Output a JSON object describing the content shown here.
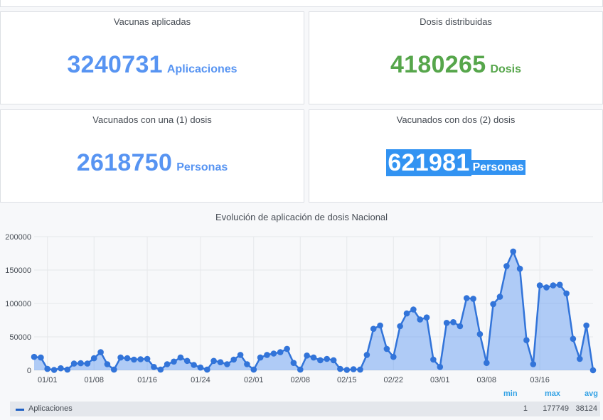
{
  "panels": [
    {
      "title": "Vacunas aplicadas",
      "value": "3240731",
      "unit": "Aplicaciones",
      "color": "#5794f2"
    },
    {
      "title": "Dosis distribuidas",
      "value": "4180265",
      "unit": "Dosis",
      "color": "#56a64b"
    },
    {
      "title": "Vacunados con una (1) dosis",
      "value": "2618750",
      "unit": "Personas",
      "color": "#5794f2"
    },
    {
      "title": "Vacunados con dos (2) dosis",
      "value": "621981",
      "unit": "Personas",
      "color": "#3293f2",
      "highlighted": true
    }
  ],
  "chart": {
    "title": "Evolución de aplicación de dosis Nacional",
    "legend": {
      "headers": {
        "min": "min",
        "max": "max",
        "avg": "avg"
      },
      "series_name": "Aplicaciones",
      "min": "1",
      "max": "177749",
      "avg": "38124",
      "color": "#1f60c4"
    }
  },
  "chart_data": {
    "type": "area",
    "title": "Evolución de aplicación de dosis Nacional",
    "ylim": [
      0,
      200000
    ],
    "y_ticks": [
      "0",
      "50000",
      "100000",
      "150000",
      "200000"
    ],
    "x_ticks": [
      "01/01",
      "01/08",
      "01/16",
      "01/24",
      "02/01",
      "02/08",
      "02/15",
      "02/22",
      "03/01",
      "03/08",
      "03/16"
    ],
    "grid": true,
    "series": [
      {
        "name": "Aplicaciones",
        "color": "#3274d9",
        "values": [
          20000,
          19000,
          2000,
          500,
          3000,
          1000,
          10000,
          10500,
          10000,
          18000,
          27000,
          9000,
          1000,
          19000,
          18000,
          16000,
          16500,
          17000,
          5000,
          1000,
          9000,
          13000,
          19000,
          14000,
          8000,
          4000,
          1000,
          14000,
          12000,
          9000,
          16000,
          23000,
          9000,
          1000,
          19000,
          23000,
          25000,
          27000,
          32000,
          11000,
          1000,
          22000,
          19000,
          15000,
          17000,
          15000,
          2000,
          500,
          1500,
          1000,
          23000,
          62000,
          67000,
          32000,
          20000,
          66000,
          85000,
          91000,
          76000,
          79000,
          16000,
          5000,
          71000,
          72000,
          66000,
          108000,
          107000,
          54000,
          11000,
          99000,
          110000,
          156000,
          177749,
          152000,
          45000,
          9000,
          127000,
          124000,
          127000,
          128000,
          115000,
          47000,
          17000,
          67000,
          1
        ]
      }
    ]
  }
}
